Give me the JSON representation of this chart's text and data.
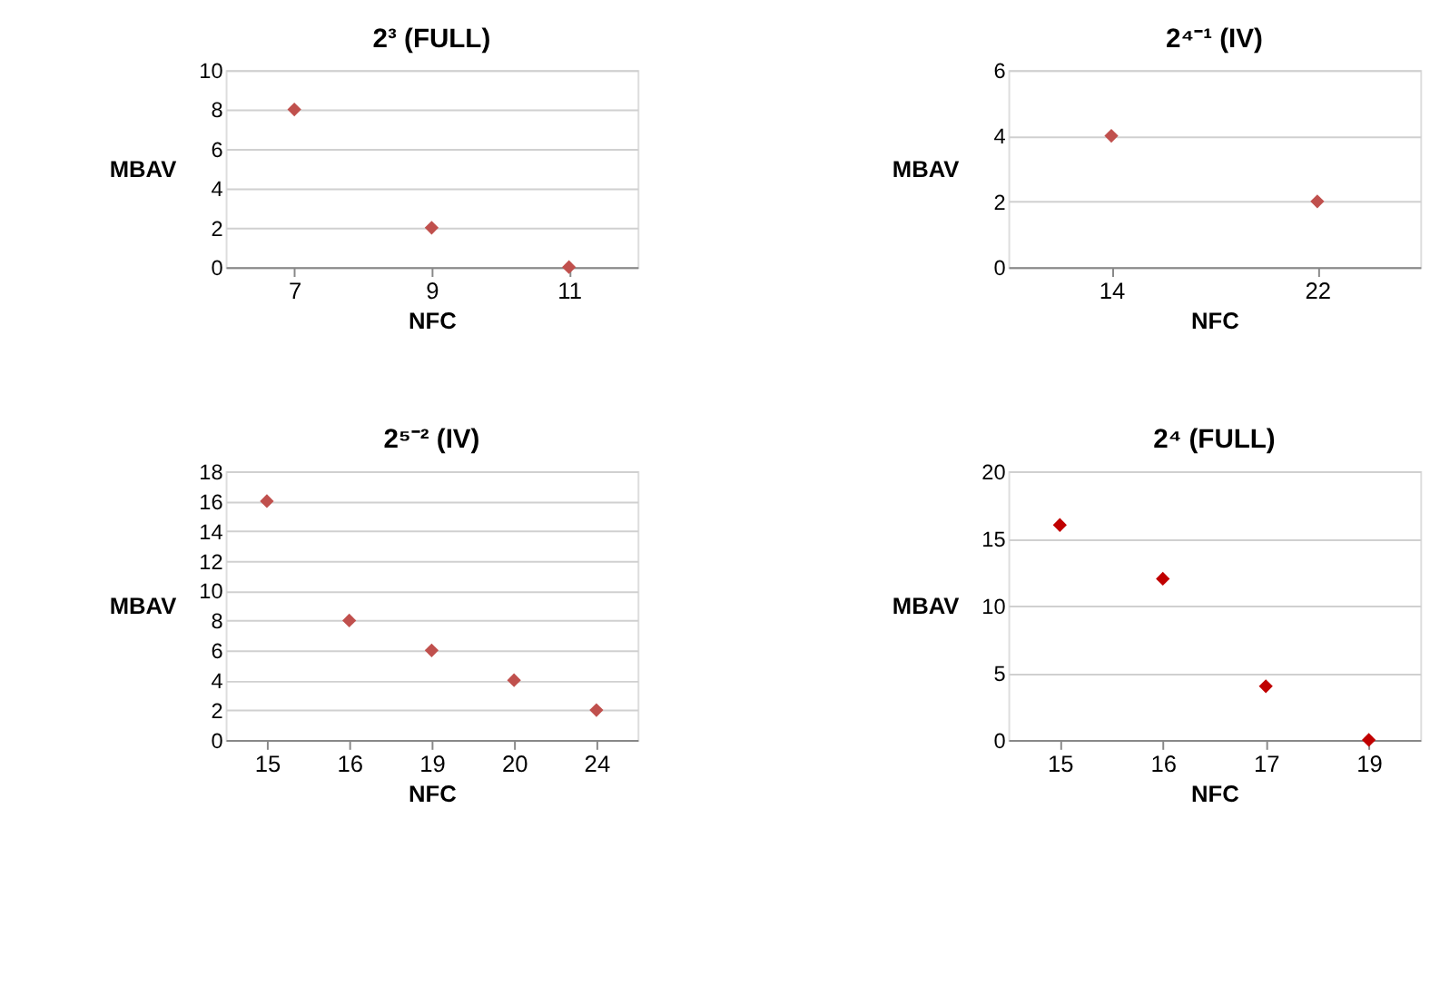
{
  "chart_data": [
    {
      "type": "scatter",
      "title": "2³ (FULL)",
      "xlabel": "NFC",
      "ylabel": "MBAV",
      "categories": [
        "7",
        "9",
        "11"
      ],
      "values": [
        8,
        2,
        0
      ],
      "color": "#c0504d",
      "ylim": [
        0,
        10
      ],
      "yticks": [
        0,
        2,
        4,
        6,
        8,
        10
      ],
      "grid": "y",
      "marker": "diamond"
    },
    {
      "type": "scatter",
      "title": "2⁴⁻¹ (IV)",
      "xlabel": "NFC",
      "ylabel": "MBAV",
      "categories": [
        "14",
        "22"
      ],
      "values": [
        4,
        2
      ],
      "color": "#c0504d",
      "ylim": [
        0,
        6
      ],
      "yticks": [
        0,
        2,
        4,
        6
      ],
      "grid": "y",
      "marker": "diamond"
    },
    {
      "type": "scatter",
      "title": "2⁵⁻² (IV)",
      "xlabel": "NFC",
      "ylabel": "MBAV",
      "categories": [
        "15",
        "16",
        "19",
        "20",
        "24"
      ],
      "values": [
        16,
        8,
        6,
        4,
        2
      ],
      "color": "#c0504d",
      "ylim": [
        0,
        18
      ],
      "yticks": [
        0,
        2,
        4,
        6,
        8,
        10,
        12,
        14,
        16,
        18
      ],
      "grid": "y",
      "marker": "diamond"
    },
    {
      "type": "scatter",
      "title": "2⁴ (FULL)",
      "xlabel": "NFC",
      "ylabel": "MBAV",
      "categories": [
        "15",
        "16",
        "17",
        "19"
      ],
      "values": [
        16,
        12,
        4,
        0
      ],
      "color": "#c00000",
      "ylim": [
        0,
        20
      ],
      "yticks": [
        0,
        5,
        10,
        15,
        20
      ],
      "grid": "y",
      "marker": "diamond"
    }
  ]
}
